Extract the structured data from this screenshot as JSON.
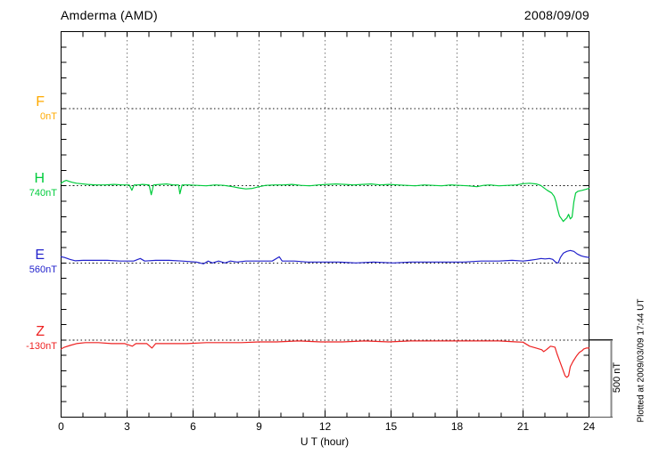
{
  "header": {
    "title": "Amderma (AMD)",
    "date": "2008/09/09"
  },
  "footer": {
    "plotted_at": "Plotted at 2009/03/09 17:44 UT"
  },
  "chart_data": {
    "type": "line",
    "title": "Amderma (AMD)",
    "subtitle": "2008/09/09",
    "xlabel": "U T (hour)",
    "ylabel": "",
    "x_range": [
      0,
      24
    ],
    "x_ticks": [
      "0",
      "3",
      "6",
      "9",
      "12",
      "15",
      "18",
      "21",
      "24"
    ],
    "x_tick_hours": [
      0,
      3,
      6,
      9,
      12,
      15,
      18,
      21,
      24
    ],
    "minor_tick_every_hours": 1,
    "grid": "dotted vertical at 3h, dotted horizontal at each component baseline",
    "legend_position": "left labels per trace",
    "scale_label": "500 nT",
    "nT_per_division": 500,
    "series": [
      {
        "name": "F",
        "baseline_label": "0nT",
        "color": "#FFAA00",
        "note": "no visible trace",
        "points": []
      },
      {
        "name": "H",
        "baseline_label": "740nT",
        "color": "#00CC3C",
        "points": [
          [
            0.0,
            17
          ],
          [
            0.12,
            29
          ],
          [
            0.24,
            35
          ],
          [
            0.36,
            29
          ],
          [
            0.5,
            23
          ],
          [
            0.7,
            17
          ],
          [
            0.9,
            14
          ],
          [
            1.2,
            9
          ],
          [
            1.6,
            6
          ],
          [
            2.0,
            6
          ],
          [
            2.4,
            9
          ],
          [
            2.8,
            6
          ],
          [
            3.1,
            6
          ],
          [
            3.22,
            -29
          ],
          [
            3.32,
            6
          ],
          [
            3.5,
            6
          ],
          [
            3.7,
            9
          ],
          [
            4.0,
            6
          ],
          [
            4.1,
            -58
          ],
          [
            4.2,
            6
          ],
          [
            4.5,
            9
          ],
          [
            4.8,
            12
          ],
          [
            5.1,
            6
          ],
          [
            5.34,
            6
          ],
          [
            5.4,
            -52
          ],
          [
            5.5,
            6
          ],
          [
            5.8,
            6
          ],
          [
            6.2,
            3
          ],
          [
            6.6,
            0
          ],
          [
            7.0,
            6
          ],
          [
            7.4,
            3
          ],
          [
            7.8,
            -6
          ],
          [
            8.1,
            -14
          ],
          [
            8.4,
            -20
          ],
          [
            8.7,
            -17
          ],
          [
            9.0,
            -6
          ],
          [
            9.3,
            3
          ],
          [
            9.7,
            6
          ],
          [
            10.1,
            6
          ],
          [
            10.5,
            9
          ],
          [
            10.9,
            3
          ],
          [
            11.3,
            0
          ],
          [
            11.7,
            6
          ],
          [
            12.1,
            9
          ],
          [
            12.5,
            12
          ],
          [
            12.9,
            9
          ],
          [
            13.3,
            6
          ],
          [
            13.7,
            9
          ],
          [
            14.1,
            12
          ],
          [
            14.5,
            6
          ],
          [
            14.9,
            9
          ],
          [
            15.3,
            6
          ],
          [
            15.7,
            3
          ],
          [
            16.1,
            0
          ],
          [
            16.5,
            6
          ],
          [
            16.9,
            3
          ],
          [
            17.3,
            0
          ],
          [
            17.7,
            6
          ],
          [
            18.1,
            3
          ],
          [
            18.5,
            0
          ],
          [
            18.9,
            -6
          ],
          [
            19.2,
            3
          ],
          [
            19.5,
            6
          ],
          [
            19.9,
            0
          ],
          [
            20.3,
            3
          ],
          [
            20.7,
            6
          ],
          [
            21.0,
            14
          ],
          [
            21.3,
            17
          ],
          [
            21.6,
            12
          ],
          [
            21.8,
            3
          ],
          [
            21.94,
            -12
          ],
          [
            22.1,
            -29
          ],
          [
            22.3,
            -46
          ],
          [
            22.42,
            -69
          ],
          [
            22.5,
            -104
          ],
          [
            22.58,
            -156
          ],
          [
            22.66,
            -196
          ],
          [
            22.75,
            -214
          ],
          [
            22.83,
            -231
          ],
          [
            22.91,
            -219
          ],
          [
            22.99,
            -208
          ],
          [
            23.07,
            -185
          ],
          [
            23.15,
            -214
          ],
          [
            23.23,
            -202
          ],
          [
            23.31,
            -104
          ],
          [
            23.39,
            -46
          ],
          [
            23.5,
            -35
          ],
          [
            23.7,
            -29
          ],
          [
            23.85,
            -23
          ],
          [
            24.0,
            -17
          ]
        ]
      },
      {
        "name": "E",
        "baseline_label": "560nT",
        "color": "#2222CC",
        "points": [
          [
            0.0,
            40
          ],
          [
            0.16,
            35
          ],
          [
            0.4,
            23
          ],
          [
            0.65,
            14
          ],
          [
            1.0,
            17
          ],
          [
            1.5,
            17
          ],
          [
            2.1,
            17
          ],
          [
            2.7,
            12
          ],
          [
            3.3,
            12
          ],
          [
            3.6,
            29
          ],
          [
            3.8,
            12
          ],
          [
            4.3,
            17
          ],
          [
            4.9,
            17
          ],
          [
            5.5,
            12
          ],
          [
            6.15,
            6
          ],
          [
            6.48,
            -6
          ],
          [
            6.68,
            12
          ],
          [
            6.88,
            0
          ],
          [
            7.16,
            12
          ],
          [
            7.45,
            0
          ],
          [
            7.7,
            12
          ],
          [
            8.0,
            6
          ],
          [
            8.4,
            12
          ],
          [
            9.0,
            12
          ],
          [
            9.6,
            12
          ],
          [
            9.92,
            40
          ],
          [
            10.05,
            12
          ],
          [
            10.6,
            12
          ],
          [
            11.2,
            6
          ],
          [
            11.8,
            6
          ],
          [
            12.6,
            6
          ],
          [
            13.4,
            0
          ],
          [
            14.2,
            6
          ],
          [
            15.1,
            0
          ],
          [
            15.9,
            6
          ],
          [
            16.7,
            6
          ],
          [
            17.5,
            6
          ],
          [
            18.3,
            6
          ],
          [
            19.1,
            12
          ],
          [
            19.9,
            12
          ],
          [
            20.5,
            17
          ],
          [
            21.0,
            12
          ],
          [
            21.3,
            17
          ],
          [
            21.6,
            23
          ],
          [
            21.82,
            29
          ],
          [
            22.0,
            26
          ],
          [
            22.2,
            29
          ],
          [
            22.35,
            23
          ],
          [
            22.5,
            3
          ],
          [
            22.6,
            0
          ],
          [
            22.7,
            35
          ],
          [
            22.83,
            63
          ],
          [
            22.99,
            75
          ],
          [
            23.15,
            81
          ],
          [
            23.31,
            75
          ],
          [
            23.47,
            58
          ],
          [
            23.64,
            46
          ],
          [
            23.8,
            40
          ],
          [
            24.0,
            35
          ]
        ]
      },
      {
        "name": "Z",
        "baseline_label": "-130nT",
        "color": "#EE2222",
        "points": [
          [
            0.0,
            -58
          ],
          [
            0.16,
            -46
          ],
          [
            0.4,
            -35
          ],
          [
            0.7,
            -23
          ],
          [
            1.1,
            -17
          ],
          [
            1.7,
            -17
          ],
          [
            2.3,
            -23
          ],
          [
            2.9,
            -23
          ],
          [
            3.24,
            -40
          ],
          [
            3.4,
            -23
          ],
          [
            3.9,
            -23
          ],
          [
            4.13,
            -52
          ],
          [
            4.3,
            -23
          ],
          [
            4.9,
            -23
          ],
          [
            5.7,
            -23
          ],
          [
            6.6,
            -17
          ],
          [
            7.4,
            -17
          ],
          [
            8.2,
            -17
          ],
          [
            9.0,
            -12
          ],
          [
            9.8,
            -12
          ],
          [
            10.8,
            -6
          ],
          [
            11.8,
            -12
          ],
          [
            12.8,
            -12
          ],
          [
            13.8,
            -6
          ],
          [
            14.9,
            -12
          ],
          [
            15.9,
            -6
          ],
          [
            16.9,
            -6
          ],
          [
            17.9,
            -6
          ],
          [
            18.9,
            -6
          ],
          [
            19.9,
            -6
          ],
          [
            20.7,
            -12
          ],
          [
            21.0,
            -14
          ],
          [
            21.3,
            -40
          ],
          [
            21.6,
            -52
          ],
          [
            21.85,
            -63
          ],
          [
            21.94,
            -75
          ],
          [
            22.06,
            -63
          ],
          [
            22.15,
            -52
          ],
          [
            22.25,
            -40
          ],
          [
            22.35,
            -43
          ],
          [
            22.45,
            -46
          ],
          [
            22.54,
            -87
          ],
          [
            22.66,
            -133
          ],
          [
            22.79,
            -185
          ],
          [
            22.91,
            -231
          ],
          [
            22.99,
            -242
          ],
          [
            23.07,
            -231
          ],
          [
            23.15,
            -173
          ],
          [
            23.27,
            -139
          ],
          [
            23.43,
            -104
          ],
          [
            23.56,
            -81
          ],
          [
            23.68,
            -69
          ],
          [
            23.76,
            -58
          ],
          [
            23.88,
            -52
          ],
          [
            24.0,
            -52
          ]
        ]
      }
    ]
  }
}
